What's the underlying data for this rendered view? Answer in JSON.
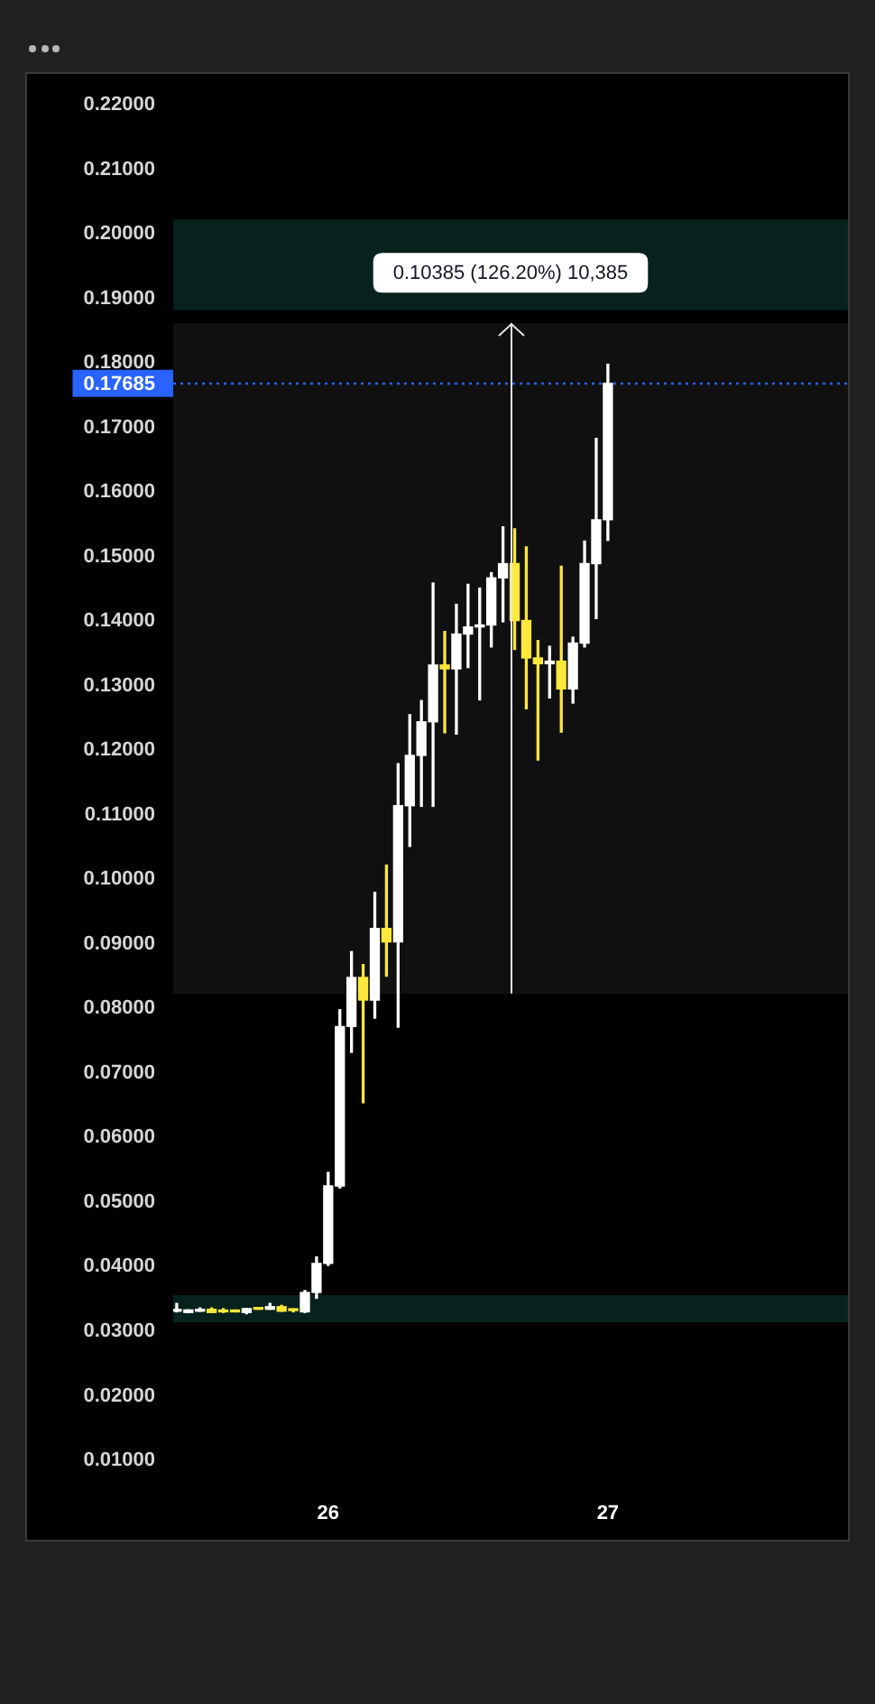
{
  "chart_data": {
    "type": "candlestick",
    "x": [
      25.4583,
      25.5,
      25.5417,
      25.5833,
      25.625,
      25.6667,
      25.7083,
      25.75,
      25.7917,
      25.8333,
      25.875,
      25.9167,
      25.9583,
      26,
      26.0417,
      26.0833,
      26.125,
      26.1667,
      26.2083,
      26.25,
      26.2917,
      26.3333,
      26.375,
      26.4167,
      26.4583,
      26.5,
      26.5417,
      26.5833,
      26.625,
      26.6667,
      26.7083,
      26.75,
      26.7917,
      26.8333,
      26.875,
      26.9167,
      26.9583,
      27
    ],
    "ohlc": [
      [
        0.0331,
        0.0343,
        0.033,
        0.0331
      ],
      [
        0.0329,
        0.0333,
        0.0329,
        0.0333
      ],
      [
        0.0331,
        0.0336,
        0.0331,
        0.0334
      ],
      [
        0.0334,
        0.0336,
        0.0329,
        0.0329
      ],
      [
        0.0332,
        0.0335,
        0.0329,
        0.033
      ],
      [
        0.0331,
        0.0331,
        0.033,
        0.033
      ],
      [
        0.0329,
        0.0335,
        0.0327,
        0.0335
      ],
      [
        0.0335,
        0.0335,
        0.0334,
        0.0334
      ],
      [
        0.0334,
        0.0343,
        0.0334,
        0.0338
      ],
      [
        0.0338,
        0.034,
        0.0331,
        0.0331
      ],
      [
        0.0333,
        0.0333,
        0.033,
        0.0332
      ],
      [
        0.033,
        0.0363,
        0.0329,
        0.036
      ],
      [
        0.036,
        0.0415,
        0.0351,
        0.0405
      ],
      [
        0.0405,
        0.0546,
        0.0402,
        0.0525
      ],
      [
        0.0525,
        0.0798,
        0.0522,
        0.0772
      ],
      [
        0.0772,
        0.0888,
        0.0732,
        0.0848
      ],
      [
        0.0848,
        0.0868,
        0.0654,
        0.0813
      ],
      [
        0.0813,
        0.098,
        0.0785,
        0.0924
      ],
      [
        0.0924,
        0.1022,
        0.085,
        0.0903
      ],
      [
        0.0903,
        0.1179,
        0.0771,
        0.1114
      ],
      [
        0.1114,
        0.1255,
        0.1051,
        0.1192
      ],
      [
        0.1192,
        0.1277,
        0.1113,
        0.1244
      ],
      [
        0.1244,
        0.1459,
        0.1113,
        0.1332
      ],
      [
        0.1332,
        0.1384,
        0.1227,
        0.1326
      ],
      [
        0.1326,
        0.1426,
        0.1225,
        0.138
      ],
      [
        0.138,
        0.1457,
        0.1328,
        0.1391
      ],
      [
        0.1391,
        0.1451,
        0.1278,
        0.1394
      ],
      [
        0.1394,
        0.1475,
        0.136,
        0.1467
      ],
      [
        0.1467,
        0.1546,
        0.1399,
        0.1489
      ],
      [
        0.1489,
        0.1543,
        0.1356,
        0.1401
      ],
      [
        0.1401,
        0.1515,
        0.1264,
        0.1343
      ],
      [
        0.1343,
        0.137,
        0.1185,
        0.1334
      ],
      [
        0.1334,
        0.1361,
        0.1281,
        0.1338
      ],
      [
        0.1338,
        0.1485,
        0.1228,
        0.1295
      ],
      [
        0.1295,
        0.1375,
        0.1273,
        0.1366
      ],
      [
        0.1366,
        0.1524,
        0.136,
        0.1489
      ],
      [
        0.1489,
        0.1683,
        0.1404,
        0.1557
      ],
      [
        0.1557,
        0.1798,
        0.1525,
        0.17685
      ]
    ],
    "colors": [
      "#ffffff",
      "#ffffff",
      "#ffffff",
      "#ffe83b",
      "#ffe83b",
      "#ffe83b",
      "#ffffff",
      "#ffe83b",
      "#ffffff",
      "#ffe83b",
      "#ffe83b",
      "#ffffff",
      "#ffffff",
      "#ffffff",
      "#ffffff",
      "#ffffff",
      "#ffe83b",
      "#ffffff",
      "#ffe83b",
      "#ffffff",
      "#ffffff",
      "#ffffff",
      "#ffffff",
      "#ffe83b",
      "#ffffff",
      "#ffffff",
      "#ffffff",
      "#ffffff",
      "#ffffff",
      "#ffe83b",
      "#ffe83b",
      "#ffe83b",
      "#ffffff",
      "#ffe83b",
      "#ffffff",
      "#ffffff",
      "#ffffff",
      "#ffffff"
    ],
    "xlim": [
      25.4458,
      27.8583
    ],
    "xticks": [
      26,
      27
    ],
    "ylim": [
      0.01,
      0.22
    ],
    "yticks": [
      {
        "value": 0.01,
        "label": "0.01000"
      },
      {
        "value": 0.02,
        "label": "0.02000"
      },
      {
        "value": 0.03,
        "label": "0.03000"
      },
      {
        "value": 0.04,
        "label": "0.04000"
      },
      {
        "value": 0.05,
        "label": "0.05000"
      },
      {
        "value": 0.06,
        "label": "0.06000"
      },
      {
        "value": 0.07,
        "label": "0.07000"
      },
      {
        "value": 0.08,
        "label": "0.08000"
      },
      {
        "value": 0.09,
        "label": "0.09000"
      },
      {
        "value": 0.1,
        "label": "0.10000"
      },
      {
        "value": 0.11,
        "label": "0.11000"
      },
      {
        "value": 0.12,
        "label": "0.12000"
      },
      {
        "value": 0.13,
        "label": "0.13000"
      },
      {
        "value": 0.14,
        "label": "0.14000"
      },
      {
        "value": 0.15,
        "label": "0.15000"
      },
      {
        "value": 0.16,
        "label": "0.16000"
      },
      {
        "value": 0.17,
        "label": "0.17000"
      },
      {
        "value": 0.18,
        "label": "0.18000"
      },
      {
        "value": 0.19,
        "label": "0.19000"
      },
      {
        "value": 0.2,
        "label": "0.20000"
      },
      {
        "value": 0.21,
        "label": "0.21000"
      },
      {
        "value": 0.22,
        "label": "0.22000"
      }
    ],
    "ref_lines": [
      {
        "axis": "y",
        "value": 0.17685,
        "label": "0.17685",
        "color": "#2962ff",
        "line_style": "dotted"
      }
    ],
    "bands": [
      {
        "axis": "y",
        "from": 0.1882,
        "to": 0.2022,
        "color": "#07221c"
      },
      {
        "axis": "y",
        "from": 0.0314,
        "to": 0.0356,
        "color": "#07221c"
      },
      {
        "axis": "y",
        "from": 0.08229,
        "to": 0.18614,
        "label": "0.10385 (126.20%) 10,385",
        "color": "#101010"
      }
    ]
  }
}
